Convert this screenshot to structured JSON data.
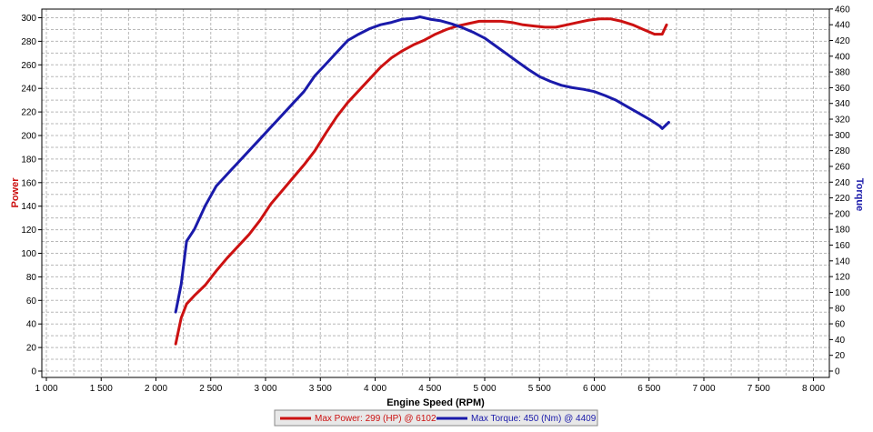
{
  "chart_data": {
    "type": "line",
    "title": "",
    "xlabel": "Engine Speed (RPM)",
    "ylabel_left": "Power",
    "ylabel_right": "Torque",
    "xlim": [
      1000,
      8000
    ],
    "ylim_left": [
      0,
      300
    ],
    "ylim_right": [
      0,
      460
    ],
    "x_ticks": [
      1000,
      1500,
      2000,
      2500,
      3000,
      3500,
      4000,
      4500,
      5000,
      5500,
      6000,
      6500,
      7000,
      7500,
      8000
    ],
    "x_tick_labels": [
      "1 000",
      "1 500",
      "2 000",
      "2 500",
      "3 000",
      "3 500",
      "4 000",
      "4 500",
      "5 000",
      "5 500",
      "6 000",
      "6 500",
      "7 000",
      "7 500",
      "8 000"
    ],
    "y_left_ticks": [
      0,
      20,
      40,
      60,
      80,
      100,
      120,
      140,
      160,
      180,
      200,
      220,
      240,
      260,
      280,
      300
    ],
    "y_right_ticks": [
      0,
      20,
      40,
      60,
      80,
      100,
      120,
      140,
      160,
      180,
      200,
      220,
      240,
      260,
      280,
      300,
      320,
      340,
      360,
      380,
      400,
      420,
      440,
      460
    ],
    "grid": true,
    "legend_placement": "bottom-center",
    "series": [
      {
        "name": "Max Power: 299 (HP) @ 6102",
        "axis": "left",
        "color": "#cc1111",
        "x": [
          2180,
          2230,
          2280,
          2350,
          2450,
          2550,
          2650,
          2750,
          2850,
          2950,
          3050,
          3150,
          3250,
          3350,
          3450,
          3550,
          3650,
          3750,
          3850,
          3950,
          4050,
          4150,
          4250,
          4350,
          4450,
          4550,
          4650,
          4750,
          4850,
          4950,
          5050,
          5150,
          5250,
          5350,
          5450,
          5550,
          5650,
          5750,
          5850,
          5950,
          6050,
          6150,
          6250,
          6350,
          6450,
          6550,
          6620,
          6660
        ],
        "y": [
          23,
          45,
          57,
          64,
          73,
          85,
          96,
          106,
          116,
          128,
          142,
          153,
          164,
          175,
          187,
          202,
          216,
          228,
          238,
          248,
          258,
          266,
          272,
          277,
          281,
          286,
          290,
          293,
          295,
          297,
          297,
          297,
          296,
          294,
          293,
          292,
          292,
          294,
          296,
          298,
          299,
          299,
          297,
          294,
          290,
          286,
          286,
          294
        ]
      },
      {
        "name": "Max Torque: 450 (Nm) @ 4409",
        "axis": "right",
        "color": "#1a1aaa",
        "x": [
          2180,
          2230,
          2280,
          2350,
          2450,
          2550,
          2650,
          2750,
          2850,
          2950,
          3050,
          3150,
          3250,
          3350,
          3450,
          3550,
          3650,
          3750,
          3850,
          3950,
          4050,
          4150,
          4250,
          4350,
          4409,
          4500,
          4600,
          4700,
          4800,
          4900,
          5000,
          5100,
          5200,
          5300,
          5400,
          5500,
          5600,
          5700,
          5800,
          5900,
          6000,
          6100,
          6200,
          6300,
          6400,
          6500,
          6600,
          6620,
          6680
        ],
        "y": [
          75,
          110,
          165,
          180,
          210,
          235,
          250,
          265,
          280,
          295,
          310,
          325,
          340,
          355,
          375,
          390,
          405,
          420,
          428,
          435,
          440,
          443,
          447,
          448,
          450,
          447,
          445,
          441,
          436,
          430,
          423,
          413,
          403,
          393,
          383,
          374,
          368,
          363,
          360,
          358,
          355,
          350,
          344,
          336,
          328,
          320,
          311,
          308,
          316
        ]
      }
    ]
  }
}
